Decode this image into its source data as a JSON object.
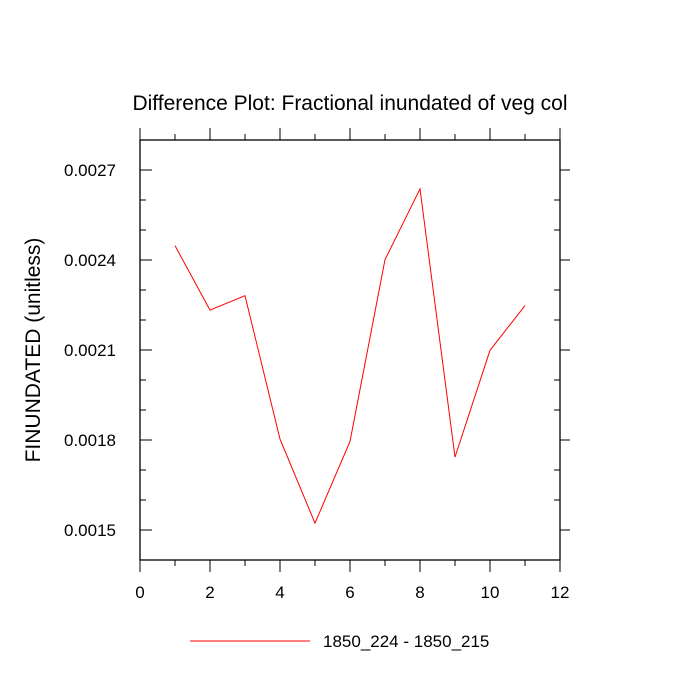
{
  "chart_data": {
    "type": "line",
    "title": "Difference Plot: Fractional inundated of veg col",
    "xlabel": "",
    "ylabel": "FINUNDATED  (unitless)",
    "xlim": [
      0,
      12
    ],
    "ylim": [
      0.0014,
      0.0028
    ],
    "x_ticks": [
      0,
      2,
      4,
      6,
      8,
      10,
      12
    ],
    "x_tick_labels": [
      "0",
      "2",
      "4",
      "6",
      "8",
      "10",
      "12"
    ],
    "y_ticks": [
      0.0015,
      0.0018,
      0.0021,
      0.0024,
      0.0027
    ],
    "y_tick_labels": [
      "0.0015",
      "0.0018",
      "0.0021",
      "0.0024",
      "0.0027"
    ],
    "grid": false,
    "legend_position": "bottom-center",
    "series": [
      {
        "name": "1850_224 - 1850_215",
        "color": "#ff0000",
        "x": [
          1,
          2,
          3,
          4,
          5,
          6,
          7,
          8,
          9,
          10,
          11
        ],
        "values": [
          0.002448,
          0.002233,
          0.002281,
          0.001803,
          0.001523,
          0.001795,
          0.002401,
          0.002637,
          0.001743,
          0.002099,
          0.002248
        ]
      }
    ]
  }
}
